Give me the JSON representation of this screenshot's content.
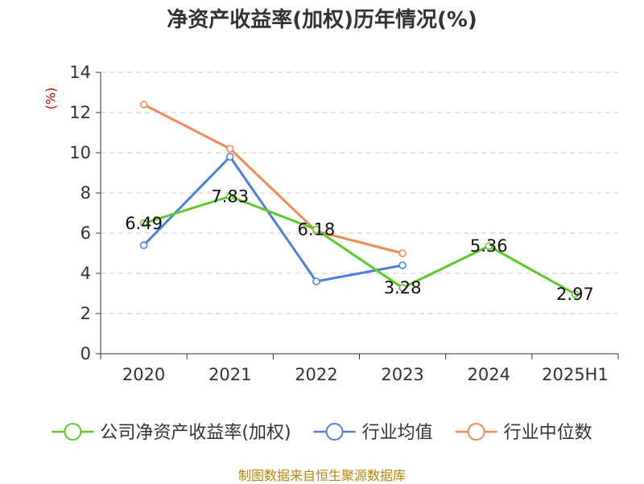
{
  "chart_data": {
    "type": "line",
    "title": "净资产收益率(加权)历年情况(%)",
    "ylabel": "(%)",
    "xlabel": "",
    "ylim": [
      0,
      14
    ],
    "yticks": [
      0,
      2,
      4,
      6,
      8,
      10,
      12,
      14
    ],
    "categories": [
      "2020",
      "2021",
      "2022",
      "2023",
      "2024",
      "2025H1"
    ],
    "grid": true,
    "legend_position": "bottom",
    "series": [
      {
        "name": "公司净资产收益率(加权)",
        "color": "#5cc92a",
        "values": [
          6.49,
          7.83,
          6.18,
          3.28,
          5.36,
          2.97
        ],
        "labels": [
          "6.49",
          "7.83",
          "6.18",
          "3.28",
          "5.36",
          "2.97"
        ],
        "show_labels": true
      },
      {
        "name": "行业均值",
        "color": "#4f7fdc",
        "values": [
          5.4,
          9.8,
          3.6,
          4.4,
          null,
          null
        ],
        "show_labels": false
      },
      {
        "name": "行业中位数",
        "color": "#f48a57",
        "values": [
          12.4,
          10.2,
          6.1,
          5.0,
          null,
          null
        ],
        "show_labels": false
      }
    ]
  },
  "source_text": "制图数据来自恒生聚源数据库"
}
